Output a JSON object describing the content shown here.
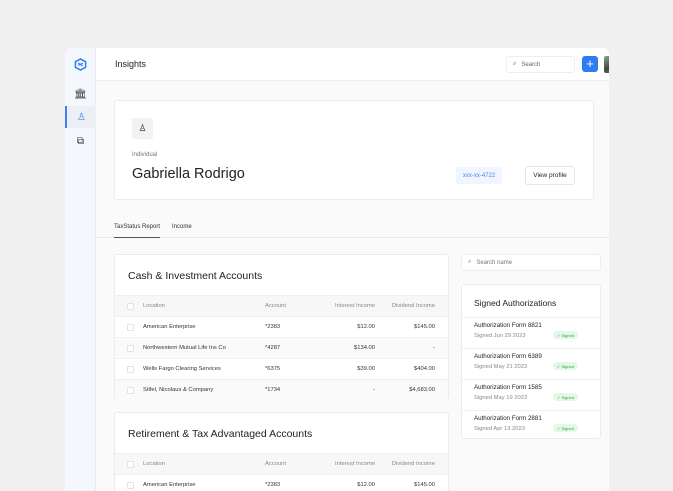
{
  "header": {
    "title": "Insights",
    "search_placeholder": "Search",
    "add_label": "+"
  },
  "profile": {
    "type": "Individual",
    "name": "Gabriella Rodrigo",
    "ssn": "xxx-xx-4722",
    "view_profile": "View profile"
  },
  "tabs": [
    {
      "label": "TaxStatus Report",
      "active": true
    },
    {
      "label": "Income",
      "active": false
    }
  ],
  "columns": [
    "Location",
    "Account",
    "Interest Income",
    "Dividend Income"
  ],
  "cash": {
    "title": "Cash & Investment Accounts",
    "rows": [
      [
        "American Enterprise",
        "*2383",
        "$12.00",
        "$145.00"
      ],
      [
        "Northwestern Mutual Life Ins Co",
        "*4287",
        "$134.00",
        "-"
      ],
      [
        "Wells Fargo Clearing Services",
        "*6375",
        "$39.00",
        "$404.00"
      ],
      [
        "Stifel, Nicolaus & Company",
        "*1734",
        "-",
        "$4,683.00"
      ]
    ]
  },
  "retirement": {
    "title": "Retirement & Tax Advantaged Accounts",
    "rows": [
      [
        "American Enterprise",
        "*2383",
        "$12.00",
        "$145.00"
      ]
    ]
  },
  "search_name_placeholder": "Search name",
  "authorizations": {
    "title": "Signed Authorizations",
    "items": [
      {
        "name": "Authorization Form 8821",
        "date": "Signed Jun 29 2023",
        "status": "✓ Signed"
      },
      {
        "name": "Authorization Form 6389",
        "date": "Signed May 21 2023",
        "status": "✓ Signed"
      },
      {
        "name": "Authorization Form 1585",
        "date": "Signed May 19 2023",
        "status": "✓ Signed"
      },
      {
        "name": "Authorization Form 2881",
        "date": "Signed Apr 13 2023",
        "status": "✓ Signed"
      }
    ]
  },
  "colors": {
    "accent": "#2f7bf5",
    "signed": "#28a745"
  }
}
